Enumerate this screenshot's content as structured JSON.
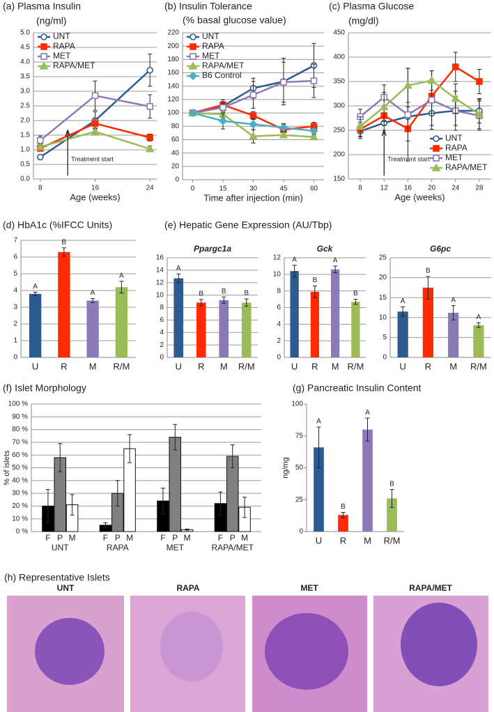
{
  "chart_data": [
    {
      "type": "line",
      "title": "(a) Plasma Insulin",
      "subtitle": "(ng/ml)",
      "xlabel": "Age (weeks)",
      "x": [
        8,
        16,
        24
      ],
      "xlim": [
        7,
        25
      ],
      "xticks": [
        8,
        16,
        24
      ],
      "ylim": [
        0,
        5
      ],
      "yticks": [
        {
          "value": 0,
          "label": "0.0"
        },
        0.5,
        {
          "value": 1,
          "label": "1.0"
        },
        1.5,
        {
          "value": 2,
          "label": "2.0"
        },
        2.5,
        {
          "value": 3,
          "label": "3.0"
        },
        3.5,
        {
          "value": 4,
          "label": "4.0"
        },
        4.5,
        {
          "value": 5,
          "label": "5.0"
        }
      ],
      "grid": true,
      "legend": "upper left",
      "annotation": {
        "text": "Treatment start",
        "x": 12
      },
      "series": [
        {
          "name": "UNT",
          "color": "#2e5b8f",
          "marker": "open-circle",
          "values": [
            0.75,
            2.0,
            3.72
          ],
          "errors": [
            0.08,
            0.3,
            0.55
          ]
        },
        {
          "name": "RAPA",
          "color": "#ff2a00",
          "marker": "square",
          "values": [
            1.05,
            1.9,
            1.42
          ],
          "errors": [
            0.1,
            0.15,
            0.12
          ]
        },
        {
          "name": "MET",
          "color": "#8c7ab8",
          "marker": "open-square",
          "values": [
            1.32,
            2.85,
            2.48
          ],
          "errors": [
            0.15,
            0.5,
            0.4
          ]
        },
        {
          "name": "RAPA/MET",
          "color": "#9bbb59",
          "marker": "triangle",
          "values": [
            1.1,
            1.62,
            1.03
          ],
          "errors": [
            0.1,
            0.1,
            0.1
          ]
        }
      ]
    },
    {
      "type": "line",
      "title": "(b) Insulin Tolerance",
      "subtitle": "(% basal glucose value)",
      "xlabel": "Time after injection (min)",
      "x": [
        0,
        15,
        30,
        45,
        60
      ],
      "xlim": [
        -5,
        65
      ],
      "xticks": [
        0,
        15,
        30,
        45,
        60
      ],
      "ylim": [
        0,
        220
      ],
      "yticks": [
        0,
        20,
        40,
        60,
        80,
        100,
        120,
        140,
        160,
        180,
        200,
        220
      ],
      "grid": true,
      "legend": "upper left",
      "series": [
        {
          "name": "UNT",
          "color": "#2e5b8f",
          "marker": "open-circle",
          "values": [
            100,
            110,
            137,
            147,
            171
          ],
          "errors": [
            0,
            10,
            15,
            35,
            33
          ]
        },
        {
          "name": "RAPA",
          "color": "#ff2a00",
          "marker": "square",
          "values": [
            100,
            112,
            96,
            75,
            80
          ],
          "errors": [
            0,
            5,
            6,
            8,
            6
          ]
        },
        {
          "name": "MET",
          "color": "#8c7ab8",
          "marker": "open-square",
          "values": [
            100,
            108,
            127,
            146,
            148
          ],
          "errors": [
            0,
            7,
            20,
            30,
            25
          ]
        },
        {
          "name": "RAPA/MET",
          "color": "#9bbb59",
          "marker": "triangle",
          "values": [
            100,
            98,
            65,
            67,
            64
          ],
          "errors": [
            0,
            5,
            10,
            4,
            3
          ]
        },
        {
          "name": "B6 Control",
          "color": "#4bacc6",
          "marker": "diamond",
          "values": [
            100,
            88,
            83,
            78,
            73
          ],
          "errors": [
            0,
            12,
            8,
            6,
            5
          ]
        }
      ]
    },
    {
      "type": "line",
      "title": "(c) Plasma Glucose",
      "subtitle": "(mg/dl)",
      "xlabel": "Age (weeks)",
      "x": [
        8,
        12,
        16,
        20,
        24,
        28
      ],
      "xlim": [
        6,
        30
      ],
      "xticks": [
        8,
        12,
        16,
        20,
        24,
        28
      ],
      "ylim": [
        150,
        450
      ],
      "yticks": [
        150,
        200,
        250,
        300,
        350,
        400,
        450
      ],
      "grid": true,
      "legend": "lower right",
      "annotation": {
        "text": "Treatment start",
        "x": 12
      },
      "series": [
        {
          "name": "UNT",
          "color": "#2e5b8f",
          "marker": "open-circle",
          "values": [
            248,
            265,
            278,
            285,
            290,
            290
          ],
          "errors": [
            15,
            15,
            20,
            25,
            30,
            25
          ]
        },
        {
          "name": "RAPA",
          "color": "#ff2a00",
          "marker": "square",
          "values": [
            252,
            280,
            253,
            320,
            380,
            350
          ],
          "errors": [
            15,
            20,
            25,
            35,
            30,
            25
          ]
        },
        {
          "name": "MET",
          "color": "#8c7ab8",
          "marker": "open-square",
          "values": [
            278,
            318,
            282,
            312,
            290,
            280
          ],
          "errors": [
            15,
            25,
            95,
            60,
            40,
            30
          ]
        },
        {
          "name": "RAPA/MET",
          "color": "#9bbb59",
          "marker": "triangle",
          "values": [
            258,
            298,
            342,
            352,
            315,
            283
          ],
          "errors": [
            20,
            30,
            35,
            20,
            30,
            30
          ]
        }
      ]
    },
    {
      "type": "bar",
      "title": "(d) HbA1c (%IFCC Units)",
      "categories": [
        "U",
        "R",
        "M",
        "R/M"
      ],
      "values": [
        3.8,
        6.3,
        3.4,
        4.2
      ],
      "errors": [
        0.1,
        0.25,
        0.12,
        0.35
      ],
      "letters": [
        "A",
        "B",
        "A",
        "A"
      ],
      "colors": [
        "#2e5b8f",
        "#ff2a00",
        "#8c7ab8",
        "#9bbb59"
      ],
      "ylim": [
        0,
        7
      ],
      "yticks": [
        0,
        1,
        2,
        3,
        4,
        5,
        6,
        7
      ],
      "grid": true
    },
    {
      "type": "bar",
      "group_title": "(e) Hepatic Gene Expression (AU/Tbp)",
      "title": "Ppargc1a",
      "categories": [
        "U",
        "R",
        "M",
        "R/M"
      ],
      "values": [
        12.7,
        8.8,
        9.2,
        8.8
      ],
      "errors": [
        0.7,
        0.5,
        0.5,
        0.6
      ],
      "letters": [
        "A",
        "B",
        "B",
        "B"
      ],
      "colors": [
        "#2e5b8f",
        "#ff2a00",
        "#8c7ab8",
        "#9bbb59"
      ],
      "ylim": [
        0,
        16
      ],
      "yticks": [
        0,
        2,
        4,
        6,
        8,
        10,
        12,
        14,
        16
      ],
      "grid": true
    },
    {
      "type": "bar",
      "title": "Gck",
      "categories": [
        "U",
        "R",
        "M",
        "R/M"
      ],
      "values": [
        10.4,
        7.9,
        10.6,
        6.7
      ],
      "errors": [
        0.7,
        0.7,
        0.4,
        0.3
      ],
      "letters": [
        "A",
        "B",
        "A",
        "B"
      ],
      "colors": [
        "#2e5b8f",
        "#ff2a00",
        "#8c7ab8",
        "#9bbb59"
      ],
      "ylim": [
        0,
        12
      ],
      "yticks": [
        0,
        2,
        4,
        6,
        8,
        10,
        12
      ],
      "grid": true
    },
    {
      "type": "bar",
      "title": "G6pc",
      "categories": [
        "U",
        "R",
        "M",
        "R/M"
      ],
      "values": [
        11.5,
        17.5,
        11.2,
        8.1
      ],
      "errors": [
        1.2,
        2.8,
        1.8,
        0.6
      ],
      "letters": [
        "A",
        "B",
        "A",
        "A"
      ],
      "colors": [
        "#2e5b8f",
        "#ff2a00",
        "#8c7ab8",
        "#9bbb59"
      ],
      "ylim": [
        0,
        25
      ],
      "yticks": [
        0,
        5,
        10,
        15,
        20,
        25
      ],
      "grid": true
    },
    {
      "type": "grouped_bar",
      "title": "(f) Islet Morphology",
      "ylabel": "% of islets",
      "categories": [
        "UNT",
        "RAPA",
        "MET",
        "RAPA/MET"
      ],
      "series": [
        {
          "name": "F",
          "color": "#000000",
          "values": [
            20,
            5,
            24,
            22
          ],
          "errors": [
            13,
            2,
            10,
            9
          ]
        },
        {
          "name": "P",
          "color": "#808080",
          "values": [
            58,
            30,
            74,
            59
          ],
          "errors": [
            11,
            10,
            10,
            9
          ]
        },
        {
          "name": "M",
          "color": "#ffffff",
          "values": [
            21,
            65,
            1.5,
            19
          ],
          "errors": [
            8,
            11,
            0.5,
            8
          ]
        }
      ],
      "ylim": [
        0,
        100
      ],
      "yticks": [
        {
          "value": 0,
          "label": "0 %"
        },
        {
          "value": 10,
          "label": "10 %"
        },
        {
          "value": 20,
          "label": "20 %"
        },
        {
          "value": 30,
          "label": "30 %"
        },
        {
          "value": 40,
          "label": "40 %"
        },
        {
          "value": 50,
          "label": "50 %"
        },
        {
          "value": 60,
          "label": "60 %"
        },
        {
          "value": 70,
          "label": "70 %"
        },
        {
          "value": 80,
          "label": "80 %"
        },
        {
          "value": 90,
          "label": "90 %"
        },
        {
          "value": 100,
          "label": "100 %"
        }
      ],
      "grid": true
    },
    {
      "type": "bar",
      "title": "(g) Pancreatic Insulin Content",
      "ylabel": "ng/mg",
      "categories": [
        "U",
        "R",
        "M",
        "R/M"
      ],
      "values": [
        66,
        13,
        80,
        26
      ],
      "errors": [
        16,
        2,
        9,
        7
      ],
      "letters": [
        "A",
        "B",
        "A",
        "B"
      ],
      "colors": [
        "#2e5b8f",
        "#ff2a00",
        "#8c7ab8",
        "#9bbb59"
      ],
      "ylim": [
        0,
        100
      ],
      "yticks": [
        0,
        25,
        50,
        75,
        100
      ],
      "grid": false
    }
  ],
  "panel_h": {
    "title": "(h) Representative Islets",
    "labels": [
      "UNT",
      "RAPA",
      "MET",
      "RAPA/MET"
    ]
  }
}
